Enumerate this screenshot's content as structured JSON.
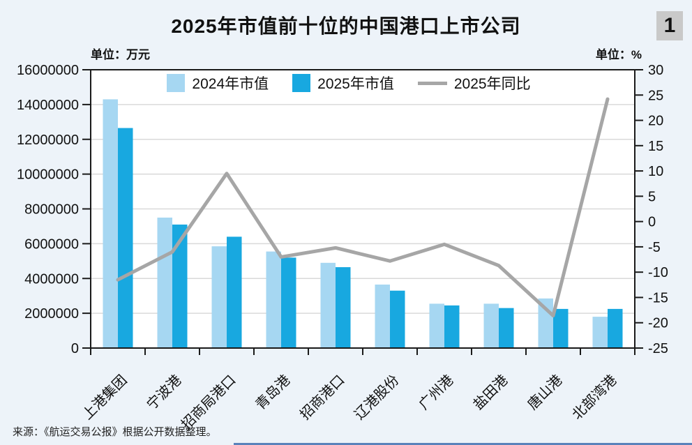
{
  "header": {
    "title": "2025年市值前十位的中国港口上市公司",
    "page_number": "1"
  },
  "units": {
    "left": "单位：万元",
    "right": "单位：%"
  },
  "legend": [
    {
      "label": "2024年市值",
      "type": "swatch",
      "color": "#a6d7f2"
    },
    {
      "label": "2025年市值",
      "type": "swatch",
      "color": "#18a8e0"
    },
    {
      "label": "2025年同比",
      "type": "line",
      "color": "#a6a6a6"
    }
  ],
  "chart_data": {
    "type": "bar",
    "subtype": "grouped-bars-with-line",
    "title": "2025年市值前十位的中国港口上市公司",
    "categories": [
      "上港集团",
      "宁波港",
      "招商局港口",
      "青岛港",
      "招商港口",
      "辽港股份",
      "广州港",
      "盐田港",
      "唐山港",
      "北部湾港"
    ],
    "series": [
      {
        "name": "2024年市值",
        "type": "bar",
        "axis": "left",
        "color": "#a6d7f2",
        "values": [
          14300000,
          7500000,
          5850000,
          5550000,
          4900000,
          3650000,
          2550000,
          2550000,
          2850000,
          1800000
        ]
      },
      {
        "name": "2025年市值",
        "type": "bar",
        "axis": "left",
        "color": "#18a8e0",
        "values": [
          12650000,
          7100000,
          6400000,
          5200000,
          4650000,
          3300000,
          2450000,
          2300000,
          2250000,
          2250000
        ]
      },
      {
        "name": "2025年同比",
        "type": "line",
        "axis": "right",
        "color": "#a6a6a6",
        "values": [
          -11.5,
          -6,
          9.5,
          -7,
          -5.2,
          -7.8,
          -4.5,
          -8.7,
          -18.6,
          24.2
        ]
      }
    ],
    "left_axis": {
      "label": "单位：万元",
      "min": 0,
      "max": 16000000,
      "step": 2000000,
      "tick_labels": [
        "0",
        "2000000",
        "4000000",
        "6000000",
        "8000000",
        "10000000",
        "12000000",
        "14000000",
        "16000000"
      ]
    },
    "right_axis": {
      "label": "单位：%",
      "min": -25,
      "max": 30,
      "step": 5,
      "tick_labels": [
        "-25",
        "-20",
        "-15",
        "-10",
        "-5",
        "0",
        "5",
        "10",
        "15",
        "20",
        "25",
        "30"
      ]
    },
    "grid": true,
    "legend_position": "top-center"
  },
  "footer": {
    "source": "来源：《航运交易公报》根据公开数据整理。"
  },
  "colors": {
    "page_background": "#edf3f9",
    "plot_background": "#ffffff",
    "bar_2024": "#a6d7f2",
    "bar_2025": "#18a8e0",
    "line_yoy": "#a6a6a6",
    "gridline": "#d9d9d9",
    "axis_frame": "#1a1a1a",
    "badge_background": "#c9c9c9",
    "bottom_accent": "#5a82bb"
  }
}
